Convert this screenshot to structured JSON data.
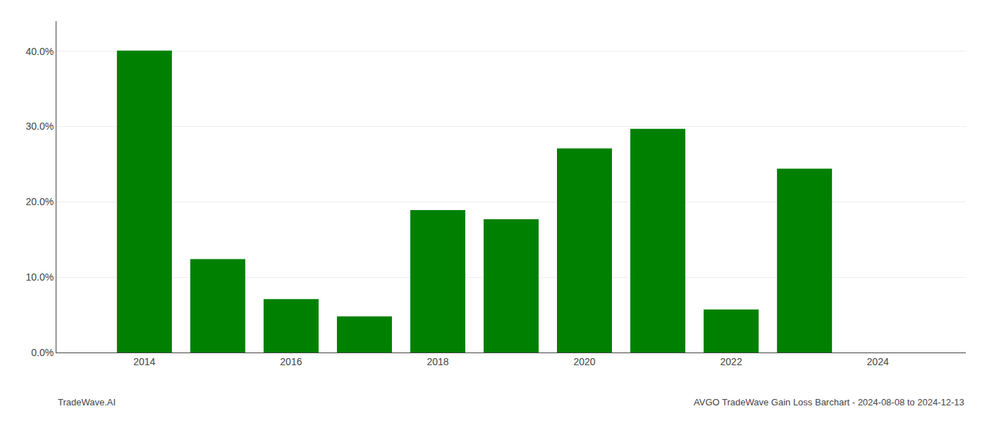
{
  "chart_data": {
    "type": "bar",
    "x": [
      2014,
      2015,
      2016,
      2017,
      2018,
      2019,
      2020,
      2021,
      2022,
      2023
    ],
    "values": [
      0.401,
      0.124,
      0.071,
      0.048,
      0.189,
      0.177,
      0.271,
      0.297,
      0.057,
      0.244
    ],
    "color": "#008000",
    "xlim": [
      2012.8,
      2025.2
    ],
    "xticks": [
      2014,
      2016,
      2018,
      2020,
      2022,
      2024
    ],
    "ylim": [
      0.0,
      0.44
    ],
    "yticks": [
      {
        "value": 0.0,
        "label": "0.0%"
      },
      {
        "value": 0.1,
        "label": "10.0%"
      },
      {
        "value": 0.2,
        "label": "20.0%"
      },
      {
        "value": 0.3,
        "label": "30.0%"
      },
      {
        "value": 0.4,
        "label": "40.0%"
      }
    ],
    "grid": true,
    "annotations": [
      "TradeWave.AI",
      "AVGO TradeWave Gain Loss Barchart - 2024-08-08 to 2024-12-13"
    ]
  }
}
